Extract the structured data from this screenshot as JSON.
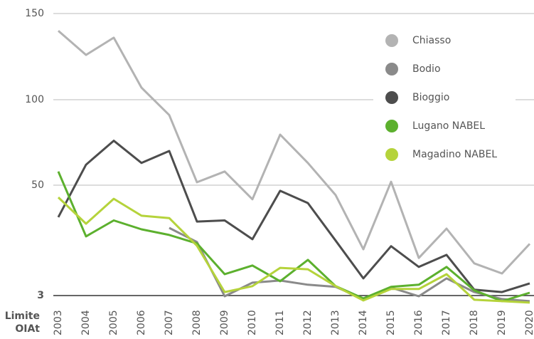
{
  "chart_data": {
    "type": "line",
    "categories": [
      "2003",
      "2004",
      "2005",
      "2006",
      "2007",
      "2008",
      "2009",
      "2010",
      "2011",
      "2012",
      "2013",
      "2014",
      "2015",
      "2016",
      "2017",
      "2018",
      "2019",
      "2020"
    ],
    "series": [
      {
        "name": "Chiasso",
        "color": "#b3b3b3",
        "values": [
          140,
          126,
          136,
          107,
          91,
          51.7,
          58,
          44,
          79.6,
          63,
          45.8,
          22.7,
          52,
          19,
          31.5,
          16.7,
          12.4,
          25
        ]
      },
      {
        "name": "Bodio",
        "color": "#8a8a8a",
        "values": [
          null,
          null,
          null,
          null,
          31.8,
          25.8,
          2.7,
          8.5,
          9.4,
          7.6,
          6.7,
          1.5,
          6.4,
          2.7,
          10.3,
          4.5,
          1.5,
          0.6
        ]
      },
      {
        "name": "Bioggio",
        "color": "#4d4d4d",
        "values": [
          36.4,
          62,
          76,
          63,
          70,
          34.5,
          35,
          27,
          47.6,
          42.4,
          26.4,
          10.3,
          24,
          15.2,
          20.3,
          5.5,
          4.5,
          8.2
        ]
      },
      {
        "name": "Lugano NABEL",
        "color": "#5cb02e",
        "values": [
          58,
          28.2,
          35,
          31.2,
          28.8,
          25.2,
          12.1,
          15.8,
          9.1,
          18.2,
          7,
          1.8,
          6.7,
          7.6,
          15.2,
          5.2,
          0.6,
          4.2
        ]
      },
      {
        "name": "Magadino NABEL",
        "color": "#b5d33b",
        "values": [
          44.8,
          33.6,
          44.2,
          37,
          36,
          24.2,
          4.5,
          7,
          14.8,
          14.2,
          7,
          0.9,
          5.8,
          5.8,
          12.1,
          1.2,
          0.6,
          0
        ]
      }
    ],
    "ylim": [
      0,
      150
    ],
    "yticks": [
      3,
      50,
      100,
      150
    ],
    "grid": true,
    "limit_label": "Limite OIAt"
  }
}
